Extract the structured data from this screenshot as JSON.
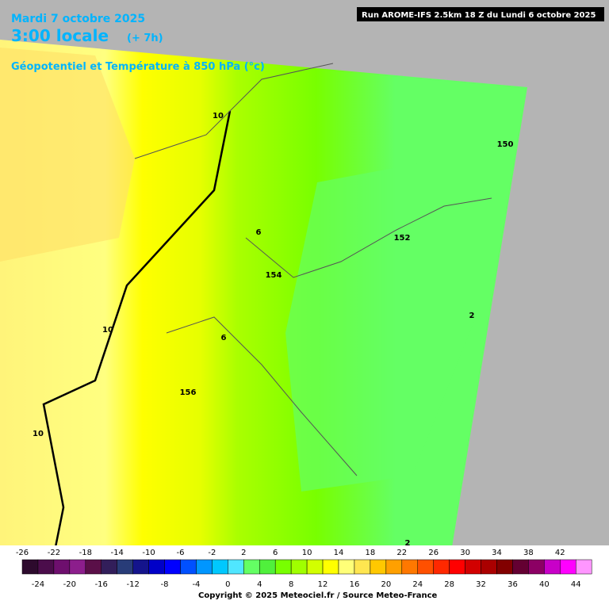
{
  "header": {
    "date": "Mardi 7 octobre 2025",
    "time": "3:00 locale",
    "offset": "(+ 7h)",
    "parameter": "Géopotentiel et Température à 850 hPa (°c)",
    "run": "Run AROME-IFS 2.5km 18 Z du Lundi 6 octobre 2025"
  },
  "contour_labels": [
    10,
    150,
    152,
    6,
    154,
    2,
    10,
    6,
    156,
    10,
    2
  ],
  "colorbar": {
    "labels_top": [
      -26,
      -22,
      -18,
      -14,
      -10,
      -6,
      -2,
      2,
      6,
      10,
      14,
      18,
      22,
      26,
      30,
      34,
      38,
      42
    ],
    "labels_bottom": [
      -24,
      -20,
      -16,
      -12,
      -8,
      -4,
      0,
      4,
      8,
      12,
      16,
      20,
      24,
      28,
      32,
      36,
      40,
      44
    ],
    "colors": [
      "#2d0a2d",
      "#4b0d4b",
      "#6e0f6e",
      "#8c1e8c",
      "#5a0f48",
      "#321e5a",
      "#283c78",
      "#14148c",
      "#0000c8",
      "#0000ff",
      "#0050ff",
      "#0096ff",
      "#00c8ff",
      "#50e6ff",
      "#64ff64",
      "#50f03c",
      "#78ff00",
      "#a0ff00",
      "#d2ff00",
      "#ffff00",
      "#ffff78",
      "#ffe650",
      "#ffc800",
      "#ffa000",
      "#ff7800",
      "#ff5000",
      "#ff2800",
      "#ff0000",
      "#d20000",
      "#aa0000",
      "#820000",
      "#640032",
      "#8c0064",
      "#c800c8",
      "#ff00ff",
      "#ff96ff"
    ]
  },
  "copyright": "Copyright © 2025 Meteociel.fr / Source Meteo-France"
}
